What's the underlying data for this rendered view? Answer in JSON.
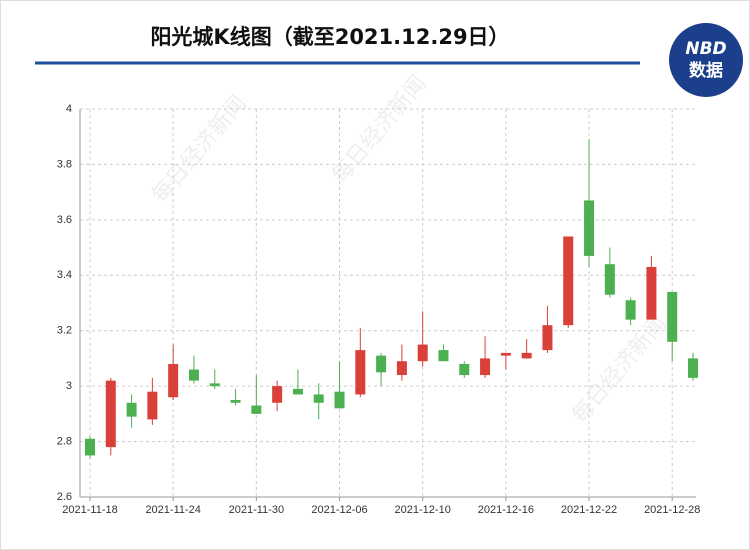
{
  "chart_data": {
    "type": "candlestick",
    "title": "阳光城K线图（截至2021.12.29日）",
    "logo": [
      "NBD",
      "数据"
    ],
    "watermark": "每日经济新闻",
    "categories": [
      "2021-11-18",
      null,
      null,
      null,
      "2021-11-24",
      null,
      null,
      null,
      "2021-11-30",
      null,
      null,
      null,
      "2021-12-06",
      null,
      null,
      null,
      "2021-12-10",
      null,
      null,
      null,
      "2021-12-16",
      null,
      null,
      null,
      "2021-12-22",
      null,
      null,
      null,
      "2021-12-28",
      null
    ],
    "open": [
      2.81,
      2.78,
      2.94,
      2.88,
      2.96,
      3.06,
      3.01,
      2.95,
      2.93,
      2.94,
      2.99,
      2.97,
      2.98,
      2.97,
      3.11,
      3.04,
      3.09,
      3.13,
      3.08,
      3.04,
      3.11,
      3.1,
      3.13,
      3.22,
      3.67,
      3.44,
      3.31,
      3.24,
      3.34,
      3.1
    ],
    "high": [
      2.82,
      3.03,
      2.97,
      3.03,
      3.15,
      3.11,
      3.06,
      2.99,
      3.04,
      3.02,
      3.06,
      3.01,
      3.09,
      3.21,
      3.12,
      3.15,
      3.27,
      3.15,
      3.09,
      3.18,
      3.12,
      3.17,
      3.29,
      3.54,
      3.89,
      3.5,
      3.32,
      3.47,
      3.34,
      3.12
    ],
    "low": [
      2.74,
      2.75,
      2.85,
      2.86,
      2.95,
      3.01,
      2.99,
      2.93,
      2.9,
      2.91,
      2.97,
      2.88,
      2.92,
      2.96,
      3.0,
      3.02,
      3.07,
      3.09,
      3.03,
      3.03,
      3.06,
      3.1,
      3.12,
      3.21,
      3.43,
      3.32,
      3.22,
      3.24,
      3.09,
      3.02
    ],
    "close": [
      2.75,
      3.02,
      2.89,
      2.98,
      3.08,
      3.02,
      3.0,
      2.94,
      2.9,
      3.0,
      2.97,
      2.94,
      2.92,
      3.13,
      3.05,
      3.09,
      3.15,
      3.09,
      3.04,
      3.1,
      3.12,
      3.12,
      3.22,
      3.54,
      3.47,
      3.33,
      3.24,
      3.43,
      3.16,
      3.03
    ],
    "up_color": "#d9403a",
    "down_color": "#4caf50",
    "ylim": [
      2.6,
      4
    ],
    "yticks": [
      2.6,
      2.8,
      3,
      3.2,
      3.4,
      3.6,
      3.8,
      4
    ],
    "grid": true
  }
}
